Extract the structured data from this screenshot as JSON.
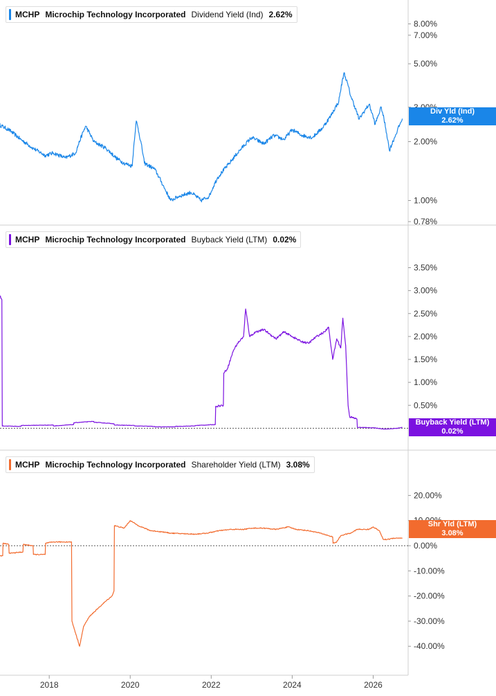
{
  "chart_data": [
    {
      "type": "line",
      "ticker": "MCHP",
      "company": "Microchip Technology Incorporated",
      "metric": "Dividend Yield (Ind)",
      "current_value": "2.62%",
      "badge_title": "Div Yld (Ind)",
      "badge_value": "2.62%",
      "color": "#1a86e8",
      "y_scale": "log",
      "ylim": [
        0.78,
        9.0
      ],
      "y_ticks": [
        {
          "value": 8,
          "label": "8.00%"
        },
        {
          "value": 7,
          "label": "7.00%"
        },
        {
          "value": 5,
          "label": "5.00%"
        },
        {
          "value": 3,
          "label": "3.00%"
        },
        {
          "value": 2,
          "label": "2.00%"
        },
        {
          "value": 1,
          "label": "1.00%"
        },
        {
          "value": 0.78,
          "label": "0.78%"
        }
      ],
      "x": [
        2016.75,
        2017.0,
        2017.3,
        2017.6,
        2017.9,
        2018.1,
        2018.4,
        2018.65,
        2018.9,
        2019.1,
        2019.4,
        2019.65,
        2019.85,
        2020.05,
        2020.15,
        2020.35,
        2020.6,
        2020.85,
        2021.0,
        2021.2,
        2021.5,
        2021.75,
        2021.95,
        2022.15,
        2022.45,
        2022.75,
        2023.0,
        2023.3,
        2023.55,
        2023.8,
        2024.0,
        2024.25,
        2024.5,
        2024.75,
        2024.95,
        2025.15,
        2025.28,
        2025.45,
        2025.65,
        2025.9,
        2026.05,
        2026.2,
        2026.4,
        2026.55,
        2026.72
      ],
      "values": [
        2.45,
        2.3,
        2.05,
        1.85,
        1.7,
        1.75,
        1.65,
        1.75,
        2.4,
        2.0,
        1.85,
        1.65,
        1.55,
        1.5,
        2.55,
        1.55,
        1.45,
        1.15,
        1.0,
        1.05,
        1.1,
        1.0,
        1.05,
        1.3,
        1.55,
        1.85,
        2.1,
        1.95,
        2.15,
        2.05,
        2.3,
        2.15,
        2.1,
        2.35,
        2.7,
        3.2,
        4.5,
        3.4,
        2.6,
        3.1,
        2.45,
        3.0,
        1.8,
        2.15,
        2.62
      ]
    },
    {
      "type": "line",
      "ticker": "MCHP",
      "company": "Microchip Technology Incorporated",
      "metric": "Buyback Yield (LTM)",
      "current_value": "0.02%",
      "badge_title": "Buyback Yield (LTM)",
      "badge_value": "0.02%",
      "color": "#7b12e0",
      "ylim": [
        -0.1,
        3.9
      ],
      "zero_line": true,
      "y_ticks": [
        {
          "value": 3.5,
          "label": "3.50%"
        },
        {
          "value": 3.0,
          "label": "3.00%"
        },
        {
          "value": 2.5,
          "label": "2.50%"
        },
        {
          "value": 2.0,
          "label": "2.00%"
        },
        {
          "value": 1.5,
          "label": "1.50%"
        },
        {
          "value": 1.0,
          "label": "1.00%"
        },
        {
          "value": 0.5,
          "label": "0.50%"
        }
      ],
      "x": [
        2016.75,
        2016.83,
        2016.84,
        2017.3,
        2017.31,
        2018.1,
        2018.11,
        2018.6,
        2018.61,
        2019.1,
        2019.11,
        2019.6,
        2019.61,
        2020.1,
        2020.11,
        2020.6,
        2020.61,
        2021.1,
        2021.11,
        2021.6,
        2021.61,
        2022.1,
        2022.11,
        2022.3,
        2022.31,
        2022.4,
        2022.55,
        2022.65,
        2022.8,
        2022.85,
        2022.95,
        2023.1,
        2023.3,
        2023.45,
        2023.6,
        2023.8,
        2024.0,
        2024.2,
        2024.4,
        2024.6,
        2024.8,
        2024.9,
        2025.0,
        2025.1,
        2025.2,
        2025.25,
        2025.32,
        2025.38,
        2025.42,
        2025.6,
        2025.61,
        2026.0,
        2026.3,
        2026.6,
        2026.72
      ],
      "values": [
        2.95,
        2.8,
        0.05,
        0.04,
        0.06,
        0.07,
        0.05,
        0.08,
        0.12,
        0.15,
        0.13,
        0.1,
        0.07,
        0.06,
        0.05,
        0.04,
        0.03,
        0.03,
        0.04,
        0.05,
        0.06,
        0.08,
        0.48,
        0.5,
        1.2,
        1.3,
        1.7,
        1.85,
        2.0,
        2.6,
        2.0,
        2.1,
        2.15,
        2.05,
        1.95,
        2.1,
        2.0,
        1.9,
        1.85,
        2.0,
        2.1,
        2.2,
        1.5,
        1.95,
        1.75,
        2.4,
        1.8,
        0.5,
        0.25,
        0.2,
        0.02,
        0.01,
        -0.02,
        0.0,
        0.02
      ]
    },
    {
      "type": "line",
      "ticker": "MCHP",
      "company": "Microchip Technology Incorporated",
      "metric": "Shareholder Yield (LTM)",
      "current_value": "3.08%",
      "badge_title": "Shr Yld (LTM)",
      "badge_value": "3.08%",
      "color": "#f26b2e",
      "ylim": [
        -46,
        27
      ],
      "zero_line": true,
      "y_ticks": [
        {
          "value": 20,
          "label": "20.00%"
        },
        {
          "value": 10,
          "label": "10.00%"
        },
        {
          "value": 0,
          "label": "0.00%"
        },
        {
          "value": -10,
          "label": "-10.00%"
        },
        {
          "value": -20,
          "label": "-20.00%"
        },
        {
          "value": -30,
          "label": "-30.00%"
        },
        {
          "value": -40,
          "label": "-40.00%"
        }
      ],
      "x": [
        2016.75,
        2016.85,
        2016.86,
        2017.0,
        2017.01,
        2017.35,
        2017.36,
        2017.6,
        2017.61,
        2017.9,
        2017.91,
        2018.1,
        2018.11,
        2018.55,
        2018.56,
        2018.75,
        2018.85,
        2019.0,
        2019.2,
        2019.4,
        2019.55,
        2019.6,
        2019.61,
        2019.85,
        2020.0,
        2020.2,
        2020.5,
        2020.8,
        2021.0,
        2021.3,
        2021.6,
        2021.9,
        2022.2,
        2022.5,
        2022.8,
        2023.0,
        2023.3,
        2023.6,
        2023.9,
        2024.1,
        2024.4,
        2024.7,
        2024.9,
        2025.0,
        2025.01,
        2025.1,
        2025.2,
        2025.3,
        2025.45,
        2025.6,
        2025.9,
        2026.0,
        2026.15,
        2026.25,
        2026.35,
        2026.5,
        2026.72
      ],
      "values": [
        -4,
        -4,
        1,
        0.5,
        -3,
        -2.5,
        0.5,
        0,
        -3.5,
        -3.5,
        1,
        1.5,
        1.5,
        1.5,
        -30,
        -40,
        -32,
        -28,
        -25,
        -22,
        -20,
        -18,
        8,
        7,
        10,
        8,
        6,
        5.5,
        5,
        4.8,
        4.6,
        5,
        6,
        6.5,
        6.5,
        7,
        7,
        6.5,
        7.5,
        6.5,
        6,
        5,
        4,
        3.5,
        1,
        1.5,
        4,
        4.5,
        5,
        6.5,
        6.5,
        7.5,
        6,
        2.5,
        2.5,
        3,
        3.08
      ]
    }
  ],
  "x_axis": {
    "xlim": [
      2016.75,
      2027.0
    ],
    "ticks": [
      {
        "value": 2018,
        "label": "2018"
      },
      {
        "value": 2020,
        "label": "2020"
      },
      {
        "value": 2022,
        "label": "2022"
      },
      {
        "value": 2024,
        "label": "2024"
      },
      {
        "value": 2026,
        "label": "2026"
      }
    ]
  }
}
